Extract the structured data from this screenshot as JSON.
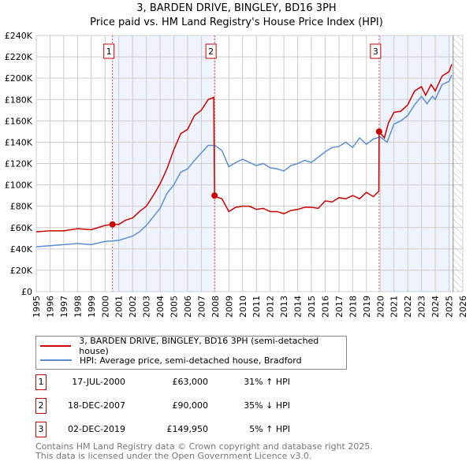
{
  "title": "3, BARDEN DRIVE, BINGLEY, BD16 3PH",
  "subtitle": "Price paid vs. HM Land Registry's House Price Index (HPI)",
  "chart_data": {
    "type": "line",
    "title": "3, BARDEN DRIVE, BINGLEY, BD16 3PH",
    "subtitle": "Price paid vs. HM Land Registry's House Price Index (HPI)",
    "xlim": [
      1995,
      2026
    ],
    "ylim": [
      0,
      240000
    ],
    "x_ticks": [
      "1995",
      "1996",
      "1997",
      "1998",
      "1999",
      "2000",
      "2001",
      "2002",
      "2003",
      "2004",
      "2005",
      "2006",
      "2007",
      "2008",
      "2009",
      "2010",
      "2011",
      "2012",
      "2013",
      "2014",
      "2015",
      "2016",
      "2017",
      "2018",
      "2019",
      "2020",
      "2021",
      "2022",
      "2023",
      "2024",
      "2025",
      "2026"
    ],
    "y_ticks": [
      "£0",
      "£20K",
      "£40K",
      "£60K",
      "£80K",
      "£100K",
      "£120K",
      "£140K",
      "£160K",
      "£180K",
      "£200K",
      "£220K",
      "£240K"
    ],
    "grid": true,
    "colors": {
      "property": "#cc0000",
      "hpi": "#5b8fd4",
      "shade": "#eef3fc"
    },
    "shaded_ranges": [
      [
        2000.54,
        2007.96
      ],
      [
        2019.92,
        2025.2
      ]
    ],
    "hatched_from": 2025.3,
    "series": [
      {
        "name": "3, BARDEN DRIVE, BINGLEY, BD16 3PH (semi-detached house)",
        "color": "#cc0000",
        "x": [
          1995,
          1996,
          1997,
          1998,
          1999,
          2000,
          2000.54,
          2001,
          2001.5,
          2002,
          2002.5,
          2003,
          2003.5,
          2004,
          2004.5,
          2005,
          2005.5,
          2006,
          2006.5,
          2007,
          2007.5,
          2007.9,
          2007.96,
          2008,
          2008.5,
          2009,
          2009.5,
          2010,
          2010.5,
          2011,
          2011.5,
          2012,
          2012.5,
          2013,
          2013.5,
          2014,
          2014.5,
          2015,
          2015.5,
          2016,
          2016.5,
          2017,
          2017.5,
          2018,
          2018.5,
          2019,
          2019.5,
          2019.9,
          2019.92,
          2020.3,
          2020.6,
          2021,
          2021.5,
          2022,
          2022.5,
          2023,
          2023.3,
          2023.7,
          2024,
          2024.5,
          2025,
          2025.2
        ],
        "y": [
          56,
          57,
          57,
          59,
          58,
          62,
          63,
          63,
          67,
          69,
          75,
          80,
          90,
          101,
          115,
          133,
          148,
          152,
          165,
          170,
          180,
          182,
          90,
          89,
          87,
          75,
          79,
          80,
          80,
          77,
          78,
          75,
          75,
          73,
          76,
          77,
          79,
          79,
          78,
          85,
          84,
          88,
          87,
          90,
          87,
          93,
          89,
          94,
          150,
          144,
          158,
          168,
          169,
          175,
          188,
          192,
          184,
          194,
          188,
          202,
          206,
          213
        ]
      },
      {
        "name": "HPI: Average price, semi-detached house, Bradford",
        "color": "#5b8fd4",
        "x": [
          1995,
          1996,
          1997,
          1998,
          1999,
          2000,
          2001,
          2002,
          2002.5,
          2003,
          2003.5,
          2004,
          2004.5,
          2005,
          2005.5,
          2006,
          2006.5,
          2007,
          2007.5,
          2008,
          2008.5,
          2009,
          2009.5,
          2010,
          2010.5,
          2011,
          2011.5,
          2012,
          2012.5,
          2013,
          2013.5,
          2014,
          2014.5,
          2015,
          2015.5,
          2016,
          2016.5,
          2017,
          2017.5,
          2018,
          2018.5,
          2019,
          2019.5,
          2020,
          2020.5,
          2021,
          2021.5,
          2022,
          2022.5,
          2023,
          2023.4,
          2023.8,
          2024,
          2024.5,
          2025,
          2025.2
        ],
        "y": [
          42,
          43,
          44,
          45,
          44,
          47,
          48,
          52,
          56,
          62,
          70,
          78,
          92,
          100,
          112,
          115,
          123,
          130,
          137,
          137,
          132,
          117,
          121,
          124,
          121,
          118,
          120,
          116,
          115,
          113,
          118,
          120,
          123,
          121,
          126,
          131,
          135,
          136,
          140,
          135,
          144,
          138,
          143,
          145,
          140,
          157,
          160,
          165,
          175,
          183,
          176,
          183,
          180,
          194,
          197,
          203
        ]
      }
    ],
    "y_unit": "thousand GBP",
    "annotations": [
      {
        "label": "1",
        "x": 2000.54,
        "y": 63
      },
      {
        "label": "2",
        "x": 2007.96,
        "y": 90
      },
      {
        "label": "3",
        "x": 2019.92,
        "y": 149.95
      }
    ]
  },
  "legend": {
    "items": [
      "3, BARDEN DRIVE, BINGLEY, BD16 3PH (semi-detached house)",
      "HPI: Average price, semi-detached house, Bradford"
    ]
  },
  "transactions": [
    {
      "n": "1",
      "date": "17-JUL-2000",
      "price": "£63,000",
      "hpi": "31% ↑ HPI"
    },
    {
      "n": "2",
      "date": "18-DEC-2007",
      "price": "£90,000",
      "hpi": "35% ↓ HPI"
    },
    {
      "n": "3",
      "date": "02-DEC-2019",
      "price": "£149,950",
      "hpi": "5% ↑ HPI"
    }
  ],
  "footer": {
    "line1": "Contains HM Land Registry data © Crown copyright and database right 2025.",
    "line2": "This data is licensed under the Open Government Licence v3.0."
  }
}
